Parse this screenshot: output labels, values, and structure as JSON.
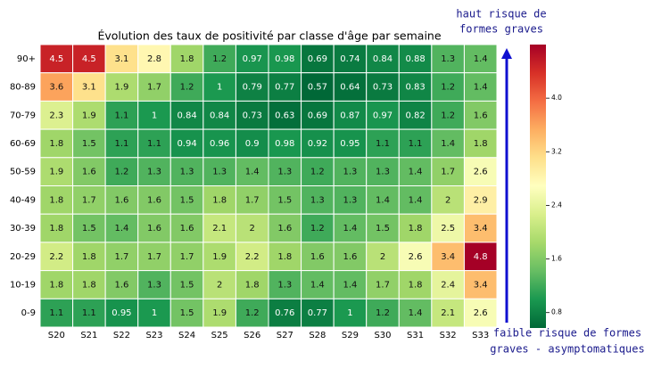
{
  "chart_data": {
    "type": "heatmap",
    "title": "Évolution des taux de positivité par classe d'âge par semaine",
    "x_categories": [
      "S20",
      "S21",
      "S22",
      "S23",
      "S24",
      "S25",
      "S26",
      "S27",
      "S28",
      "S29",
      "S30",
      "S31",
      "S32",
      "S33"
    ],
    "y_categories": [
      "90+",
      "80-89",
      "70-79",
      "60-69",
      "50-59",
      "40-49",
      "30-39",
      "20-29",
      "10-19",
      "0-9"
    ],
    "values": [
      [
        4.5,
        4.5,
        3.1,
        2.8,
        1.8,
        1.2,
        0.97,
        0.98,
        0.69,
        0.74,
        0.84,
        0.88,
        1.3,
        1.4
      ],
      [
        3.6,
        3.1,
        1.9,
        1.7,
        1.2,
        1,
        0.79,
        0.77,
        0.57,
        0.64,
        0.73,
        0.83,
        1.2,
        1.4
      ],
      [
        2.3,
        1.9,
        1.1,
        1,
        0.84,
        0.84,
        0.73,
        0.63,
        0.69,
        0.87,
        0.97,
        0.82,
        1.2,
        1.6
      ],
      [
        1.8,
        1.5,
        1.1,
        1.1,
        0.94,
        0.96,
        0.9,
        0.98,
        0.92,
        0.95,
        1.1,
        1.1,
        1.4,
        1.8
      ],
      [
        1.9,
        1.6,
        1.2,
        1.3,
        1.3,
        1.3,
        1.4,
        1.3,
        1.2,
        1.3,
        1.3,
        1.4,
        1.7,
        2.6
      ],
      [
        1.8,
        1.7,
        1.6,
        1.6,
        1.5,
        1.8,
        1.7,
        1.5,
        1.3,
        1.3,
        1.4,
        1.4,
        2,
        2.9
      ],
      [
        1.8,
        1.5,
        1.4,
        1.6,
        1.6,
        2.1,
        2,
        1.6,
        1.2,
        1.4,
        1.5,
        1.8,
        2.5,
        3.4
      ],
      [
        2.2,
        1.8,
        1.7,
        1.7,
        1.7,
        1.9,
        2.2,
        1.8,
        1.6,
        1.6,
        2,
        2.6,
        3.4,
        4.8
      ],
      [
        1.8,
        1.8,
        1.6,
        1.3,
        1.5,
        2,
        1.8,
        1.3,
        1.4,
        1.4,
        1.7,
        1.8,
        2.4,
        3.4
      ],
      [
        1.1,
        1.1,
        0.95,
        1,
        1.5,
        1.9,
        1.2,
        0.76,
        0.77,
        1,
        1.2,
        1.4,
        2.1,
        2.6
      ]
    ],
    "colormap": [
      "#006837",
      "#1a9850",
      "#66bd63",
      "#a6d96a",
      "#d9ef8b",
      "#ffffbf",
      "#fee08b",
      "#fdae61",
      "#f46d43",
      "#d73027",
      "#a50026"
    ],
    "zlim": [
      0.57,
      4.8
    ],
    "zticks": [
      0.8,
      1.6,
      2.4,
      3.2,
      {
        "value": 4,
        "label": "4.0"
      }
    ],
    "annotations": {
      "high_risk": [
        "haut risque de",
        "formes graves"
      ],
      "low_risk": [
        "faible risque de formes",
        "graves - asymptomatiques"
      ]
    }
  }
}
